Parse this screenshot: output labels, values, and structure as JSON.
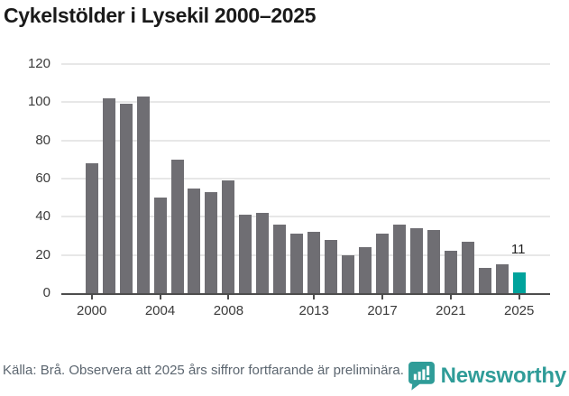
{
  "chart_data": {
    "type": "bar",
    "title": "Cykelstölder i Lysekil 2000–2025",
    "x": [
      2000,
      2001,
      2002,
      2003,
      2004,
      2005,
      2006,
      2007,
      2008,
      2009,
      2010,
      2011,
      2012,
      2013,
      2014,
      2015,
      2016,
      2017,
      2018,
      2019,
      2020,
      2021,
      2022,
      2023,
      2024,
      2025
    ],
    "values": [
      68,
      102,
      99,
      103,
      50,
      70,
      55,
      53,
      59,
      41,
      42,
      36,
      31,
      32,
      28,
      20,
      24,
      31,
      36,
      34,
      33,
      22,
      27,
      13,
      15,
      11
    ],
    "xlabel": "",
    "ylabel": "",
    "ylim": [
      0,
      120
    ],
    "yticks": [
      0,
      20,
      40,
      60,
      80,
      100,
      120
    ],
    "xticks": [
      2000,
      2004,
      2008,
      2013,
      2017,
      2021,
      2025
    ],
    "grid": true,
    "legend": "none",
    "bar_color": "#6f6e73",
    "axis_color": "#4d4d4d",
    "gridline_color": "#e7e7e7",
    "highlight": {
      "x": 2025,
      "color": "#00a39c",
      "label": "11"
    }
  },
  "footer": {
    "source_text": "Källa: Brå. Observera att 2025 års siffror fortfarande är preliminära."
  },
  "logo": {
    "text": "Newsworthy",
    "color": "#2f9c98",
    "icon": "newsworthy-chart-bubble-icon"
  }
}
